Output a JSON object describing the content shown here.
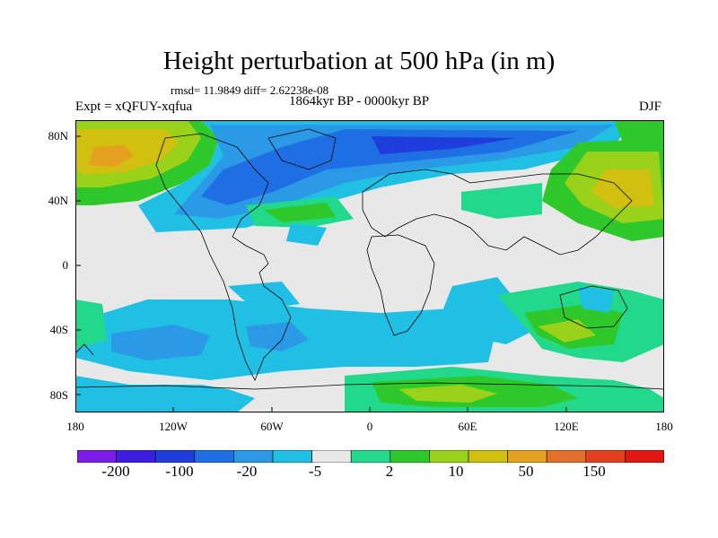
{
  "title": "Height perturbation at 500 hPa (in m)",
  "stats": "rmsd= 11.9849 diff= 2.62238e-08",
  "period": "1864kyr BP - 0000kyr BP",
  "experiment": "Expt = xQFUY-xqfua",
  "season": "DJF",
  "lat_labels": [
    "80N",
    "40N",
    "0",
    "40S",
    "80S"
  ],
  "lon_labels": [
    "180",
    "120W",
    "60W",
    "0",
    "60E",
    "120E",
    "180"
  ],
  "colorbar": {
    "labels": [
      "-200",
      "-100",
      "-20",
      "-5",
      "2",
      "10",
      "50",
      "150"
    ],
    "colors": [
      "#7b1de6",
      "#3d1ee0",
      "#1e3ddc",
      "#1f6fe4",
      "#2b9ae6",
      "#1fc0e4",
      "#e8e8e8",
      "#22d88a",
      "#2ec82a",
      "#9ad21a",
      "#d2c010",
      "#e4a01e",
      "#e4702e",
      "#e4401e",
      "#e01810"
    ]
  }
}
